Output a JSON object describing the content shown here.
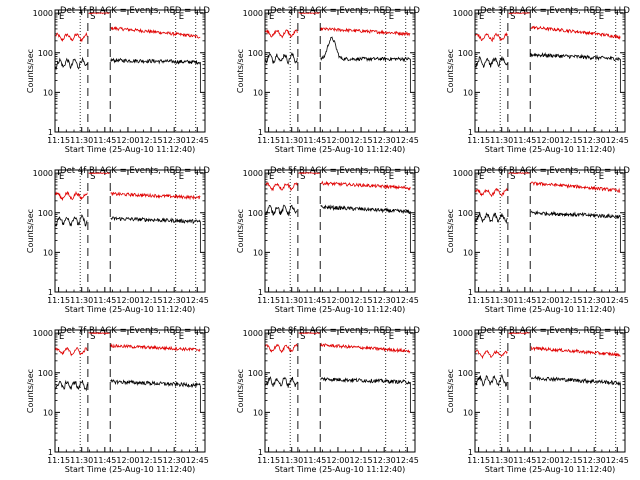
{
  "figure": {
    "xlabel": "Start Time (25-Aug-10 11:12:40)",
    "ylabel": "Counts/sec",
    "xticks": [
      "11:15",
      "11:30",
      "11:45",
      "12:00",
      "12:15",
      "12:30",
      "12:45"
    ],
    "yticks": [
      "1",
      "10",
      "100",
      "1000"
    ],
    "colors": {
      "events": "#000000",
      "lld": "#e00000"
    }
  },
  "chart_data": [
    {
      "type": "line",
      "title": "Det 1f BLACK = Events, RED = LLD",
      "markers": {
        "E1": "E",
        "S": "S",
        "E2": "E"
      },
      "xlim": [
        "11:12:40",
        "12:50"
      ],
      "ylim": [
        1,
        1200
      ],
      "yscale": "log",
      "events": {
        "pre": 55,
        "post": 65,
        "end": 58
      },
      "lld": {
        "pre": 250,
        "peak": 1000,
        "post": 420,
        "end": 250
      }
    },
    {
      "type": "line",
      "title": "Det 2f BLACK = Events, RED = LLD",
      "markers": {
        "E1": "E",
        "S": "S",
        "E2": "E"
      },
      "xlim": [
        "11:12:40",
        "12:50"
      ],
      "ylim": [
        1,
        1200
      ],
      "yscale": "log",
      "events": {
        "pre": 75,
        "post": 70,
        "end": 70,
        "bump": 230
      },
      "lld": {
        "pre": 310,
        "peak": 1000,
        "post": 400,
        "end": 300
      }
    },
    {
      "type": "line",
      "title": "Det 3f BLACK = Events, RED = LLD",
      "markers": {
        "E1": "E",
        "S": "S",
        "E2": "E"
      },
      "xlim": [
        "11:12:40",
        "12:50"
      ],
      "ylim": [
        1,
        1200
      ],
      "yscale": "log",
      "events": {
        "pre": 60,
        "post": 90,
        "end": 70
      },
      "lld": {
        "pre": 250,
        "peak": 1000,
        "post": 440,
        "end": 250
      }
    },
    {
      "type": "line",
      "title": "Det 4f BLACK = Events, RED = LLD",
      "markers": {
        "E1": "E",
        "S": "S",
        "E2": "E"
      },
      "xlim": [
        "11:12:40",
        "12:50"
      ],
      "ylim": [
        1,
        1200
      ],
      "yscale": "log",
      "events": {
        "pre": 65,
        "post": 72,
        "end": 60
      },
      "lld": {
        "pre": 270,
        "peak": 1000,
        "post": 300,
        "end": 240
      }
    },
    {
      "type": "line",
      "title": "Det 5f BLACK = Events, RED = LLD",
      "markers": {
        "E1": "E",
        "S": "S",
        "E2": "E"
      },
      "xlim": [
        "11:12:40",
        "12:50"
      ],
      "ylim": [
        1,
        1200
      ],
      "yscale": "log",
      "events": {
        "pre": 120,
        "post": 140,
        "end": 105
      },
      "lld": {
        "pre": 470,
        "peak": 1000,
        "post": 560,
        "end": 420
      }
    },
    {
      "type": "line",
      "title": "Det 6f BLACK = Events, RED = LLD",
      "markers": {
        "E1": "E",
        "S": "S",
        "E2": "E"
      },
      "xlim": [
        "11:12:40",
        "12:50"
      ],
      "ylim": [
        1,
        1200
      ],
      "yscale": "log",
      "events": {
        "pre": 75,
        "post": 100,
        "end": 80
      },
      "lld": {
        "pre": 330,
        "peak": 1000,
        "post": 560,
        "end": 360
      }
    },
    {
      "type": "line",
      "title": "Det 7f BLACK = Events, RED = LLD",
      "markers": {
        "E1": "E",
        "S": "S",
        "E2": "E"
      },
      "xlim": [
        "11:12:40",
        "12:50"
      ],
      "ylim": [
        1,
        1200
      ],
      "yscale": "log",
      "events": {
        "pre": 50,
        "post": 60,
        "end": 48
      },
      "lld": {
        "pre": 350,
        "peak": 1000,
        "post": 480,
        "end": 380
      }
    },
    {
      "type": "line",
      "title": "Det 8f BLACK = Events, RED = LLD",
      "markers": {
        "E1": "E",
        "S": "S",
        "E2": "E"
      },
      "xlim": [
        "11:12:40",
        "12:50"
      ],
      "ylim": [
        1,
        1200
      ],
      "yscale": "log",
      "events": {
        "pre": 60,
        "post": 70,
        "end": 58
      },
      "lld": {
        "pre": 420,
        "peak": 1000,
        "post": 500,
        "end": 350
      }
    },
    {
      "type": "line",
      "title": "Det 9f BLACK = Events, RED = LLD",
      "markers": {
        "E1": "E",
        "S": "S",
        "E2": "E"
      },
      "xlim": [
        "11:12:40",
        "12:50"
      ],
      "ylim": [
        1,
        1200
      ],
      "yscale": "log",
      "events": {
        "pre": 65,
        "post": 75,
        "end": 55
      },
      "lld": {
        "pre": 300,
        "peak": 1000,
        "post": 420,
        "end": 280
      }
    }
  ]
}
